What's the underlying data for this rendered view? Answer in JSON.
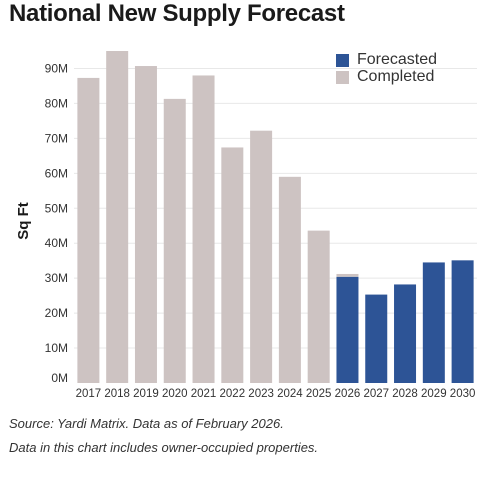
{
  "title": "National New Supply Forecast",
  "colors": {
    "completed": "#cdc3c2",
    "forecasted": "#2d5496",
    "axis_text": "#333333",
    "grid": "#e8e8e8"
  },
  "legend": {
    "forecasted": "Forecasted",
    "completed": "Completed"
  },
  "notes": {
    "source": "Source: Yardi Matrix. Data as of February 2026.",
    "disclaimer": "Data in this chart includes owner-occupied properties."
  },
  "chart_data": {
    "type": "bar",
    "title": "National New Supply Forecast",
    "xlabel": "",
    "ylabel": "Sq Ft",
    "ylim": [
      0,
      95
    ],
    "yticks": [
      0,
      10,
      20,
      30,
      40,
      50,
      60,
      70,
      80,
      90
    ],
    "ytick_labels": [
      "0M",
      "10M",
      "20M",
      "30M",
      "40M",
      "50M",
      "60M",
      "70M",
      "80M",
      "90M"
    ],
    "unit": "M sq ft",
    "grid": true,
    "legend_position": "top-right",
    "categories": [
      "2017",
      "2018",
      "2019",
      "2020",
      "2021",
      "2022",
      "2023",
      "2024",
      "2025",
      "2026",
      "2027",
      "2028",
      "2029",
      "2030"
    ],
    "series": [
      {
        "name": "Completed",
        "values": [
          87.3,
          95.0,
          90.7,
          81.3,
          88.0,
          67.4,
          72.2,
          59.0,
          43.6,
          0.8,
          0,
          0,
          0,
          0
        ]
      },
      {
        "name": "Forecasted",
        "values": [
          0,
          0,
          0,
          0,
          0,
          0,
          0,
          0,
          0,
          30.4,
          25.3,
          28.2,
          34.5,
          35.1
        ]
      }
    ]
  }
}
